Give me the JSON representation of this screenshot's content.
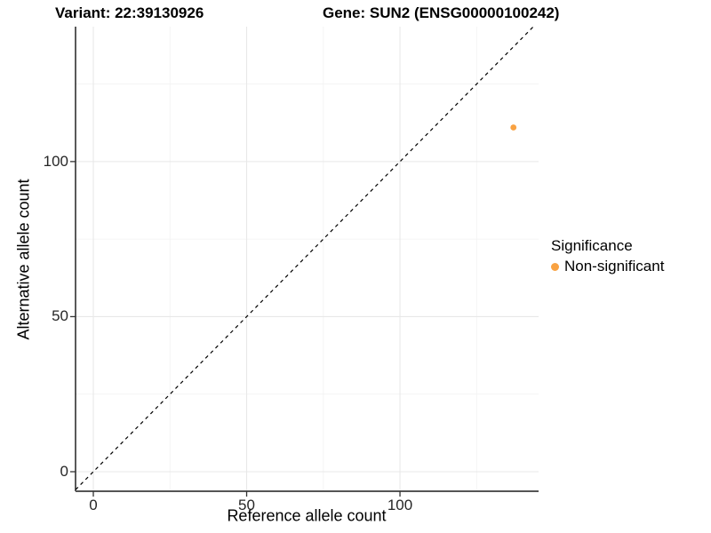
{
  "titles": {
    "variant": "Variant: 22:39130926",
    "gene": "Gene: SUN2 (ENSG00000100242)"
  },
  "chart_data": {
    "type": "scatter",
    "title_left": "Variant: 22:39130926",
    "title_right": "Gene: SUN2 (ENSG00000100242)",
    "xlabel": "Reference allele count",
    "ylabel": "Alternative allele count",
    "xlim": [
      -5.8,
      145.2
    ],
    "ylim": [
      -6.3,
      143.5
    ],
    "x_ticks": [
      0,
      50,
      100
    ],
    "y_ticks": [
      0,
      50,
      100
    ],
    "x_minor_ticks": [
      25,
      75,
      125
    ],
    "y_minor_ticks": [
      25,
      75,
      125
    ],
    "grid": true,
    "reference_line": {
      "type": "identity",
      "line_style": "dashed",
      "color": "#000000"
    },
    "series": [
      {
        "name": "Non-significant",
        "color": "#F9A242",
        "points": [
          {
            "x": 137,
            "y": 111
          }
        ]
      }
    ],
    "legend": {
      "title": "Significance",
      "position": "right",
      "entries": [
        {
          "label": "Non-significant",
          "color": "#F9A242"
        }
      ]
    },
    "colors": {
      "grid_major": "#e8e8e8",
      "grid_minor": "#f3f3f3",
      "axis_line_left": "#000000",
      "axis_line_bottom": "#555555",
      "tick_mark": "#333333"
    }
  }
}
